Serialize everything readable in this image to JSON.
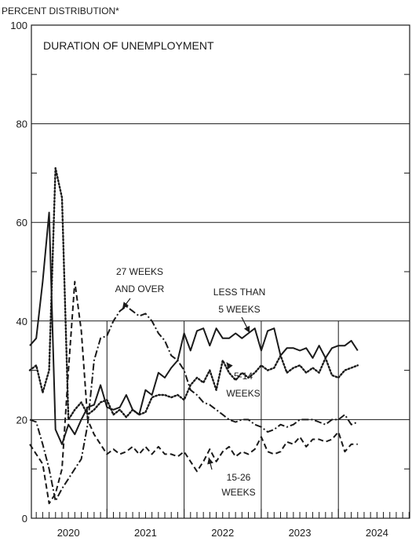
{
  "chart_data": {
    "type": "line",
    "title": "DURATION OF UNEMPLOYMENT",
    "ylabel": "PERCENT DISTRIBUTION*",
    "ylim": [
      0,
      100
    ],
    "yticks": [
      0,
      20,
      40,
      60,
      80,
      100
    ],
    "xlim": [
      2020.0,
      2025.0
    ],
    "xticks": [
      {
        "label": "2020",
        "value": 2020.0
      },
      {
        "label": "2021",
        "value": 2021.0
      },
      {
        "label": "2022",
        "value": 2022.0
      },
      {
        "label": "2023",
        "value": 2023.0
      },
      {
        "label": "2024",
        "value": 2024.0
      }
    ],
    "grid": true,
    "series": [
      {
        "name": "LESS THAN 5 WEEKS",
        "style": "solid",
        "x": [
          2020.0,
          2020.083,
          2020.167,
          2020.25,
          2020.333,
          2020.417,
          2020.5,
          2020.583,
          2020.667,
          2020.75,
          2020.833,
          2020.917,
          2021.0,
          2021.083,
          2021.167,
          2021.25,
          2021.333,
          2021.417,
          2021.5,
          2021.583,
          2021.667,
          2021.75,
          2021.833,
          2021.917,
          2022.0,
          2022.083,
          2022.167,
          2022.25,
          2022.333,
          2022.417,
          2022.5,
          2022.583,
          2022.667,
          2022.75,
          2022.833,
          2022.917,
          2023.0,
          2023.083,
          2023.167,
          2023.25,
          2023.333,
          2023.417,
          2023.5,
          2023.583,
          2023.667,
          2023.75,
          2023.833,
          2023.917,
          2024.0,
          2024.083,
          2024.167,
          2024.25
        ],
        "values": [
          35,
          36.5,
          48,
          62,
          18,
          15,
          19,
          17,
          20,
          22.5,
          23,
          27,
          22.5,
          22,
          22.5,
          25,
          22,
          21,
          26,
          25,
          29.5,
          28.5,
          30.5,
          32,
          37.5,
          34,
          38,
          38.5,
          35,
          38.5,
          36.5,
          36.5,
          37.5,
          36.5,
          37.5,
          38.5,
          34,
          38,
          38.5,
          33,
          34.5,
          34.5,
          34,
          34.5,
          32.5,
          35,
          32.5,
          34.5,
          35,
          35,
          36,
          34
        ]
      },
      {
        "name": "5-14 WEEKS",
        "style": "dotted",
        "x": [
          2020.0,
          2020.083,
          2020.167,
          2020.25,
          2020.333,
          2020.417,
          2020.5,
          2020.583,
          2020.667,
          2020.75,
          2020.833,
          2020.917,
          2021.0,
          2021.083,
          2021.167,
          2021.25,
          2021.333,
          2021.417,
          2021.5,
          2021.583,
          2021.667,
          2021.75,
          2021.833,
          2021.917,
          2022.0,
          2022.083,
          2022.167,
          2022.25,
          2022.333,
          2022.417,
          2022.5,
          2022.583,
          2022.667,
          2022.75,
          2022.833,
          2022.917,
          2023.0,
          2023.083,
          2023.167,
          2023.25,
          2023.333,
          2023.417,
          2023.5,
          2023.583,
          2023.667,
          2023.75,
          2023.833,
          2023.917,
          2024.0,
          2024.083,
          2024.167,
          2024.25
        ],
        "values": [
          30,
          31,
          25.5,
          30,
          71,
          65,
          20,
          22,
          23.5,
          21,
          22,
          23.5,
          24,
          21,
          22,
          20.5,
          22,
          21,
          21.5,
          24.5,
          25,
          25,
          24.5,
          25,
          24,
          27,
          28.5,
          27.5,
          30,
          26,
          32,
          29.5,
          28,
          29.5,
          28.5,
          29.5,
          31,
          30,
          30.5,
          33,
          29.5,
          30.5,
          31,
          29.5,
          30.5,
          29.5,
          32.5,
          29,
          28.5,
          30,
          30.5,
          31
        ]
      },
      {
        "name": "15-26 WEEKS",
        "style": "dashed",
        "x": [
          2020.0,
          2020.083,
          2020.167,
          2020.25,
          2020.333,
          2020.417,
          2020.5,
          2020.583,
          2020.667,
          2020.75,
          2020.833,
          2020.917,
          2021.0,
          2021.083,
          2021.167,
          2021.25,
          2021.333,
          2021.417,
          2021.5,
          2021.583,
          2021.667,
          2021.75,
          2021.833,
          2021.917,
          2022.0,
          2022.083,
          2022.167,
          2022.25,
          2022.333,
          2022.417,
          2022.5,
          2022.583,
          2022.667,
          2022.75,
          2022.833,
          2022.917,
          2023.0,
          2023.083,
          2023.167,
          2023.25,
          2023.333,
          2023.417,
          2023.5,
          2023.583,
          2023.667,
          2023.75,
          2023.833,
          2023.917,
          2024.0,
          2024.083,
          2024.167,
          2024.25
        ],
        "values": [
          15,
          13,
          11,
          3,
          5,
          10,
          30,
          48,
          38,
          20,
          17,
          15,
          13,
          14,
          13,
          13.5,
          14.5,
          13,
          14.5,
          13,
          14.5,
          13,
          13,
          12.5,
          13.5,
          11.5,
          9.5,
          11.5,
          14,
          11.5,
          13.5,
          14.5,
          12.5,
          13.5,
          13,
          14,
          16.5,
          13.5,
          13,
          13.5,
          15.5,
          15,
          16.5,
          14.5,
          16,
          16,
          15.5,
          16,
          17.5,
          13.5,
          15,
          15
        ]
      },
      {
        "name": "27 WEEKS AND OVER",
        "style": "dashdot",
        "x": [
          2020.0,
          2020.083,
          2020.167,
          2020.25,
          2020.333,
          2020.417,
          2020.5,
          2020.583,
          2020.667,
          2020.75,
          2020.833,
          2020.917,
          2021.0,
          2021.083,
          2021.167,
          2021.25,
          2021.333,
          2021.417,
          2021.5,
          2021.583,
          2021.667,
          2021.75,
          2021.833,
          2021.917,
          2022.0,
          2022.083,
          2022.167,
          2022.25,
          2022.333,
          2022.417,
          2022.5,
          2022.583,
          2022.667,
          2022.75,
          2022.833,
          2022.917,
          2023.0,
          2023.083,
          2023.167,
          2023.25,
          2023.333,
          2023.417,
          2023.5,
          2023.583,
          2023.667,
          2023.75,
          2023.833,
          2023.917,
          2024.0,
          2024.083,
          2024.167,
          2024.25
        ],
        "values": [
          20,
          19.5,
          15,
          10,
          3.5,
          6,
          8,
          10,
          12,
          19,
          32,
          36.5,
          37,
          40,
          42,
          43,
          42,
          41,
          41.5,
          40,
          37.5,
          36,
          33,
          32,
          30,
          26,
          25,
          23.5,
          23,
          22,
          21,
          20,
          19.5,
          20,
          20,
          19,
          18.5,
          17.5,
          18,
          19,
          18.5,
          19,
          20,
          20,
          20,
          19.5,
          19,
          20,
          20,
          21,
          19,
          19.5
        ]
      }
    ],
    "annotations": [
      {
        "text": "27 WEEKS AND OVER",
        "lines": [
          "27 WEEKS",
          "AND OVER"
        ],
        "target": [
          2021.2,
          42.5
        ]
      },
      {
        "text": "LESS THAN 5 WEEKS",
        "lines": [
          "LESS THAN",
          "5 WEEKS"
        ],
        "target": [
          2022.85,
          37.6
        ]
      },
      {
        "text": "5-14 WEEKS",
        "lines": [
          "5-14",
          "WEEKS"
        ],
        "target": [
          2022.55,
          31.6
        ]
      },
      {
        "text": "15-26 WEEKS",
        "lines": [
          "15-26",
          "WEEKS"
        ],
        "target": [
          2022.32,
          12.3
        ]
      }
    ]
  }
}
